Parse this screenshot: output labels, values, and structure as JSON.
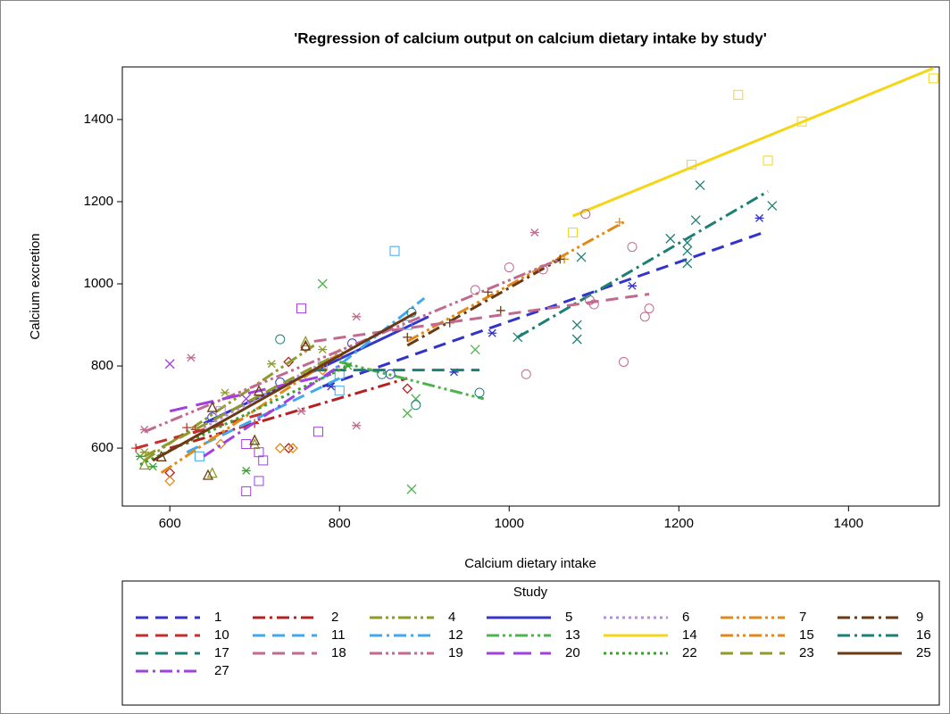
{
  "chart_data": {
    "type": "scatter",
    "title": "'Regression of calcium output on calcium dietary intake by study'",
    "xlabel": "Calcium dietary intake",
    "ylabel": "Calcium excretion",
    "legend_title": "Study",
    "legend": "bottom",
    "xlim": [
      544,
      1507
    ],
    "ylim": [
      459,
      1528
    ],
    "xticks": [
      600,
      800,
      1000,
      1200,
      1400
    ],
    "yticks": [
      600,
      800,
      1000,
      1200,
      1400
    ],
    "series": [
      {
        "name": "1",
        "color": "#3333cc",
        "dash": "dashed",
        "marker": "asterisk",
        "x": [
          790,
          935,
          980,
          1145,
          1295
        ],
        "y": [
          750,
          785,
          880,
          995,
          1160
        ],
        "fit": [
          [
            780,
            750
          ],
          [
            1300,
            1125
          ]
        ]
      },
      {
        "name": "2",
        "color": "#b22222",
        "dash": "dashdot",
        "marker": "diamond",
        "x": [
          600,
          740,
          740,
          760,
          880
        ],
        "y": [
          540,
          810,
          600,
          845,
          745
        ],
        "fit": [
          [
            600,
            600
          ],
          [
            880,
            770
          ]
        ]
      },
      {
        "name": "4",
        "color": "#8f9a2a",
        "dash": "dashdotdot",
        "marker": "triangle",
        "x": [
          570,
          650,
          700,
          760
        ],
        "y": [
          560,
          540,
          610,
          860
        ],
        "fit": [
          [
            570,
            570
          ],
          [
            770,
            850
          ]
        ]
      },
      {
        "name": "5",
        "color": "#3535cc",
        "dash": "solid",
        "marker": "circle",
        "x": [
          650,
          730,
          815,
          860
        ],
        "y": [
          675,
          760,
          855,
          780
        ],
        "fit": [
          [
            640,
            660
          ],
          [
            905,
            920
          ]
        ]
      },
      {
        "name": "6",
        "color": "#b68fe0",
        "dash": "dotted",
        "marker": "square",
        "x": [
          660,
          780
        ],
        "y": [
          690,
          800
        ],
        "fit": [
          [
            640,
            650
          ],
          [
            800,
            830
          ]
        ]
      },
      {
        "name": "7",
        "color": "#e08a18",
        "dash": "dashdotdot",
        "marker": "plus",
        "x": [
          1065,
          1130
        ],
        "y": [
          1060,
          1150
        ],
        "fit": [
          [
            880,
            860
          ],
          [
            1135,
            1150
          ]
        ]
      },
      {
        "name": "9",
        "color": "#6b3a14",
        "dash": "dashdot",
        "marker": "plus",
        "x": [
          880,
          930,
          975,
          990,
          1060
        ],
        "y": [
          870,
          905,
          980,
          935,
          1060
        ],
        "fit": [
          [
            880,
            850
          ],
          [
            1060,
            1060
          ]
        ]
      },
      {
        "name": "10",
        "color": "#c0302f",
        "dash": "dashed",
        "marker": "plus",
        "x": [
          560,
          620,
          630,
          700
        ],
        "y": [
          600,
          650,
          645,
          660
        ],
        "fit": [
          [
            560,
            600
          ],
          [
            720,
            690
          ]
        ]
      },
      {
        "name": "11",
        "color": "#3fa8f0",
        "dash": "dashed",
        "marker": "square",
        "x": [
          635,
          800,
          865
        ],
        "y": [
          580,
          740,
          1080
        ],
        "fit": [
          [
            620,
            590
          ],
          [
            800,
            770
          ]
        ]
      },
      {
        "name": "12",
        "color": "#3fa8f0",
        "dash": "dashdot",
        "marker": "square",
        "x": [
          800,
          880
        ],
        "y": [
          780,
          900
        ],
        "fit": [
          [
            780,
            770
          ],
          [
            900,
            965
          ]
        ]
      },
      {
        "name": "13",
        "color": "#4db34d",
        "dash": "dashdotdot",
        "marker": "x",
        "x": [
          780,
          880,
          885,
          890,
          960
        ],
        "y": [
          1000,
          685,
          500,
          720,
          840
        ],
        "fit": [
          [
            800,
            810
          ],
          [
            970,
            720
          ]
        ]
      },
      {
        "name": "14",
        "color": "#f5d617",
        "dash": "solid",
        "marker": "square",
        "x": [
          1075,
          1215,
          1270,
          1305,
          1345,
          1500
        ],
        "y": [
          1125,
          1290,
          1460,
          1300,
          1395,
          1500
        ],
        "fit": [
          [
            1075,
            1165
          ],
          [
            1500,
            1525
          ]
        ]
      },
      {
        "name": "15",
        "color": "#e08a18",
        "dash": "dashdotdot",
        "marker": "diamond",
        "x": [
          600,
          660,
          730,
          745,
          780,
          800
        ],
        "y": [
          520,
          610,
          600,
          600,
          790,
          830
        ],
        "fit": [
          [
            590,
            540
          ],
          [
            800,
            830
          ]
        ]
      },
      {
        "name": "16",
        "color": "#1d7f74",
        "dash": "dashdot",
        "marker": "x",
        "x": [
          1010,
          1080,
          1080,
          1085,
          1190,
          1210,
          1210,
          1210,
          1220,
          1225,
          1310
        ],
        "y": [
          870,
          865,
          900,
          1065,
          1110,
          1050,
          1080,
          1100,
          1155,
          1240,
          1190
        ],
        "fit": [
          [
            1010,
            870
          ],
          [
            1305,
            1225
          ]
        ]
      },
      {
        "name": "17",
        "color": "#1d7f74",
        "dash": "dashed",
        "marker": "circle",
        "x": [
          730,
          850,
          885,
          890,
          965
        ],
        "y": [
          865,
          780,
          930,
          705,
          735
        ],
        "fit": [
          [
            770,
            790
          ],
          [
            965,
            790
          ]
        ]
      },
      {
        "name": "18",
        "color": "#c06a8f",
        "dash": "dashed",
        "marker": "circle",
        "x": [
          960,
          1000,
          1020,
          1040,
          1090,
          1095,
          1100,
          1135,
          1145,
          1160,
          1165
        ],
        "y": [
          985,
          1040,
          780,
          1035,
          1170,
          960,
          950,
          810,
          1090,
          920,
          940
        ],
        "fit": [
          [
            770,
            860
          ],
          [
            1165,
            975
          ]
        ]
      },
      {
        "name": "19",
        "color": "#c06a8f",
        "dash": "dashdotdot",
        "marker": "asterisk",
        "x": [
          570,
          625,
          755,
          820,
          820,
          1030
        ],
        "y": [
          645,
          820,
          690,
          920,
          655,
          1125
        ],
        "fit": [
          [
            570,
            640
          ],
          [
            1060,
            1060
          ]
        ]
      },
      {
        "name": "20",
        "color": "#a040e0",
        "dash": "longdash",
        "marker": "square",
        "x": [
          690,
          690,
          705,
          705,
          710,
          755,
          775
        ],
        "y": [
          495,
          610,
          520,
          590,
          570,
          940,
          640
        ],
        "fit": [
          [
            600,
            690
          ],
          [
            790,
            780
          ]
        ]
      },
      {
        "name": "22",
        "color": "#3aa030",
        "dash": "dotted",
        "marker": "asterisk",
        "x": [
          565,
          580,
          690,
          810
        ],
        "y": [
          580,
          555,
          545,
          800
        ],
        "fit": [
          [
            565,
            560
          ],
          [
            810,
            800
          ]
        ]
      },
      {
        "name": "23",
        "color": "#8f9a2a",
        "dash": "dashed",
        "marker": "asterisk",
        "x": [
          570,
          665,
          720,
          780
        ],
        "y": [
          590,
          735,
          805,
          840
        ],
        "fit": [
          [
            570,
            580
          ],
          [
            790,
            820
          ]
        ]
      },
      {
        "name": "25",
        "color": "#6b3a14",
        "dash": "solid",
        "marker": "triangle",
        "x": [
          590,
          645,
          650,
          700,
          705,
          760
        ],
        "y": [
          580,
          535,
          700,
          620,
          740,
          850
        ],
        "fit": [
          [
            580,
            570
          ],
          [
            890,
            930
          ]
        ]
      },
      {
        "name": "27",
        "color": "#a040e0",
        "dash": "dashdot",
        "marker": "x",
        "x": [
          600,
          690
        ],
        "y": [
          805,
          720
        ],
        "fit": [
          [
            640,
            580
          ],
          [
            800,
            800
          ]
        ]
      }
    ]
  }
}
